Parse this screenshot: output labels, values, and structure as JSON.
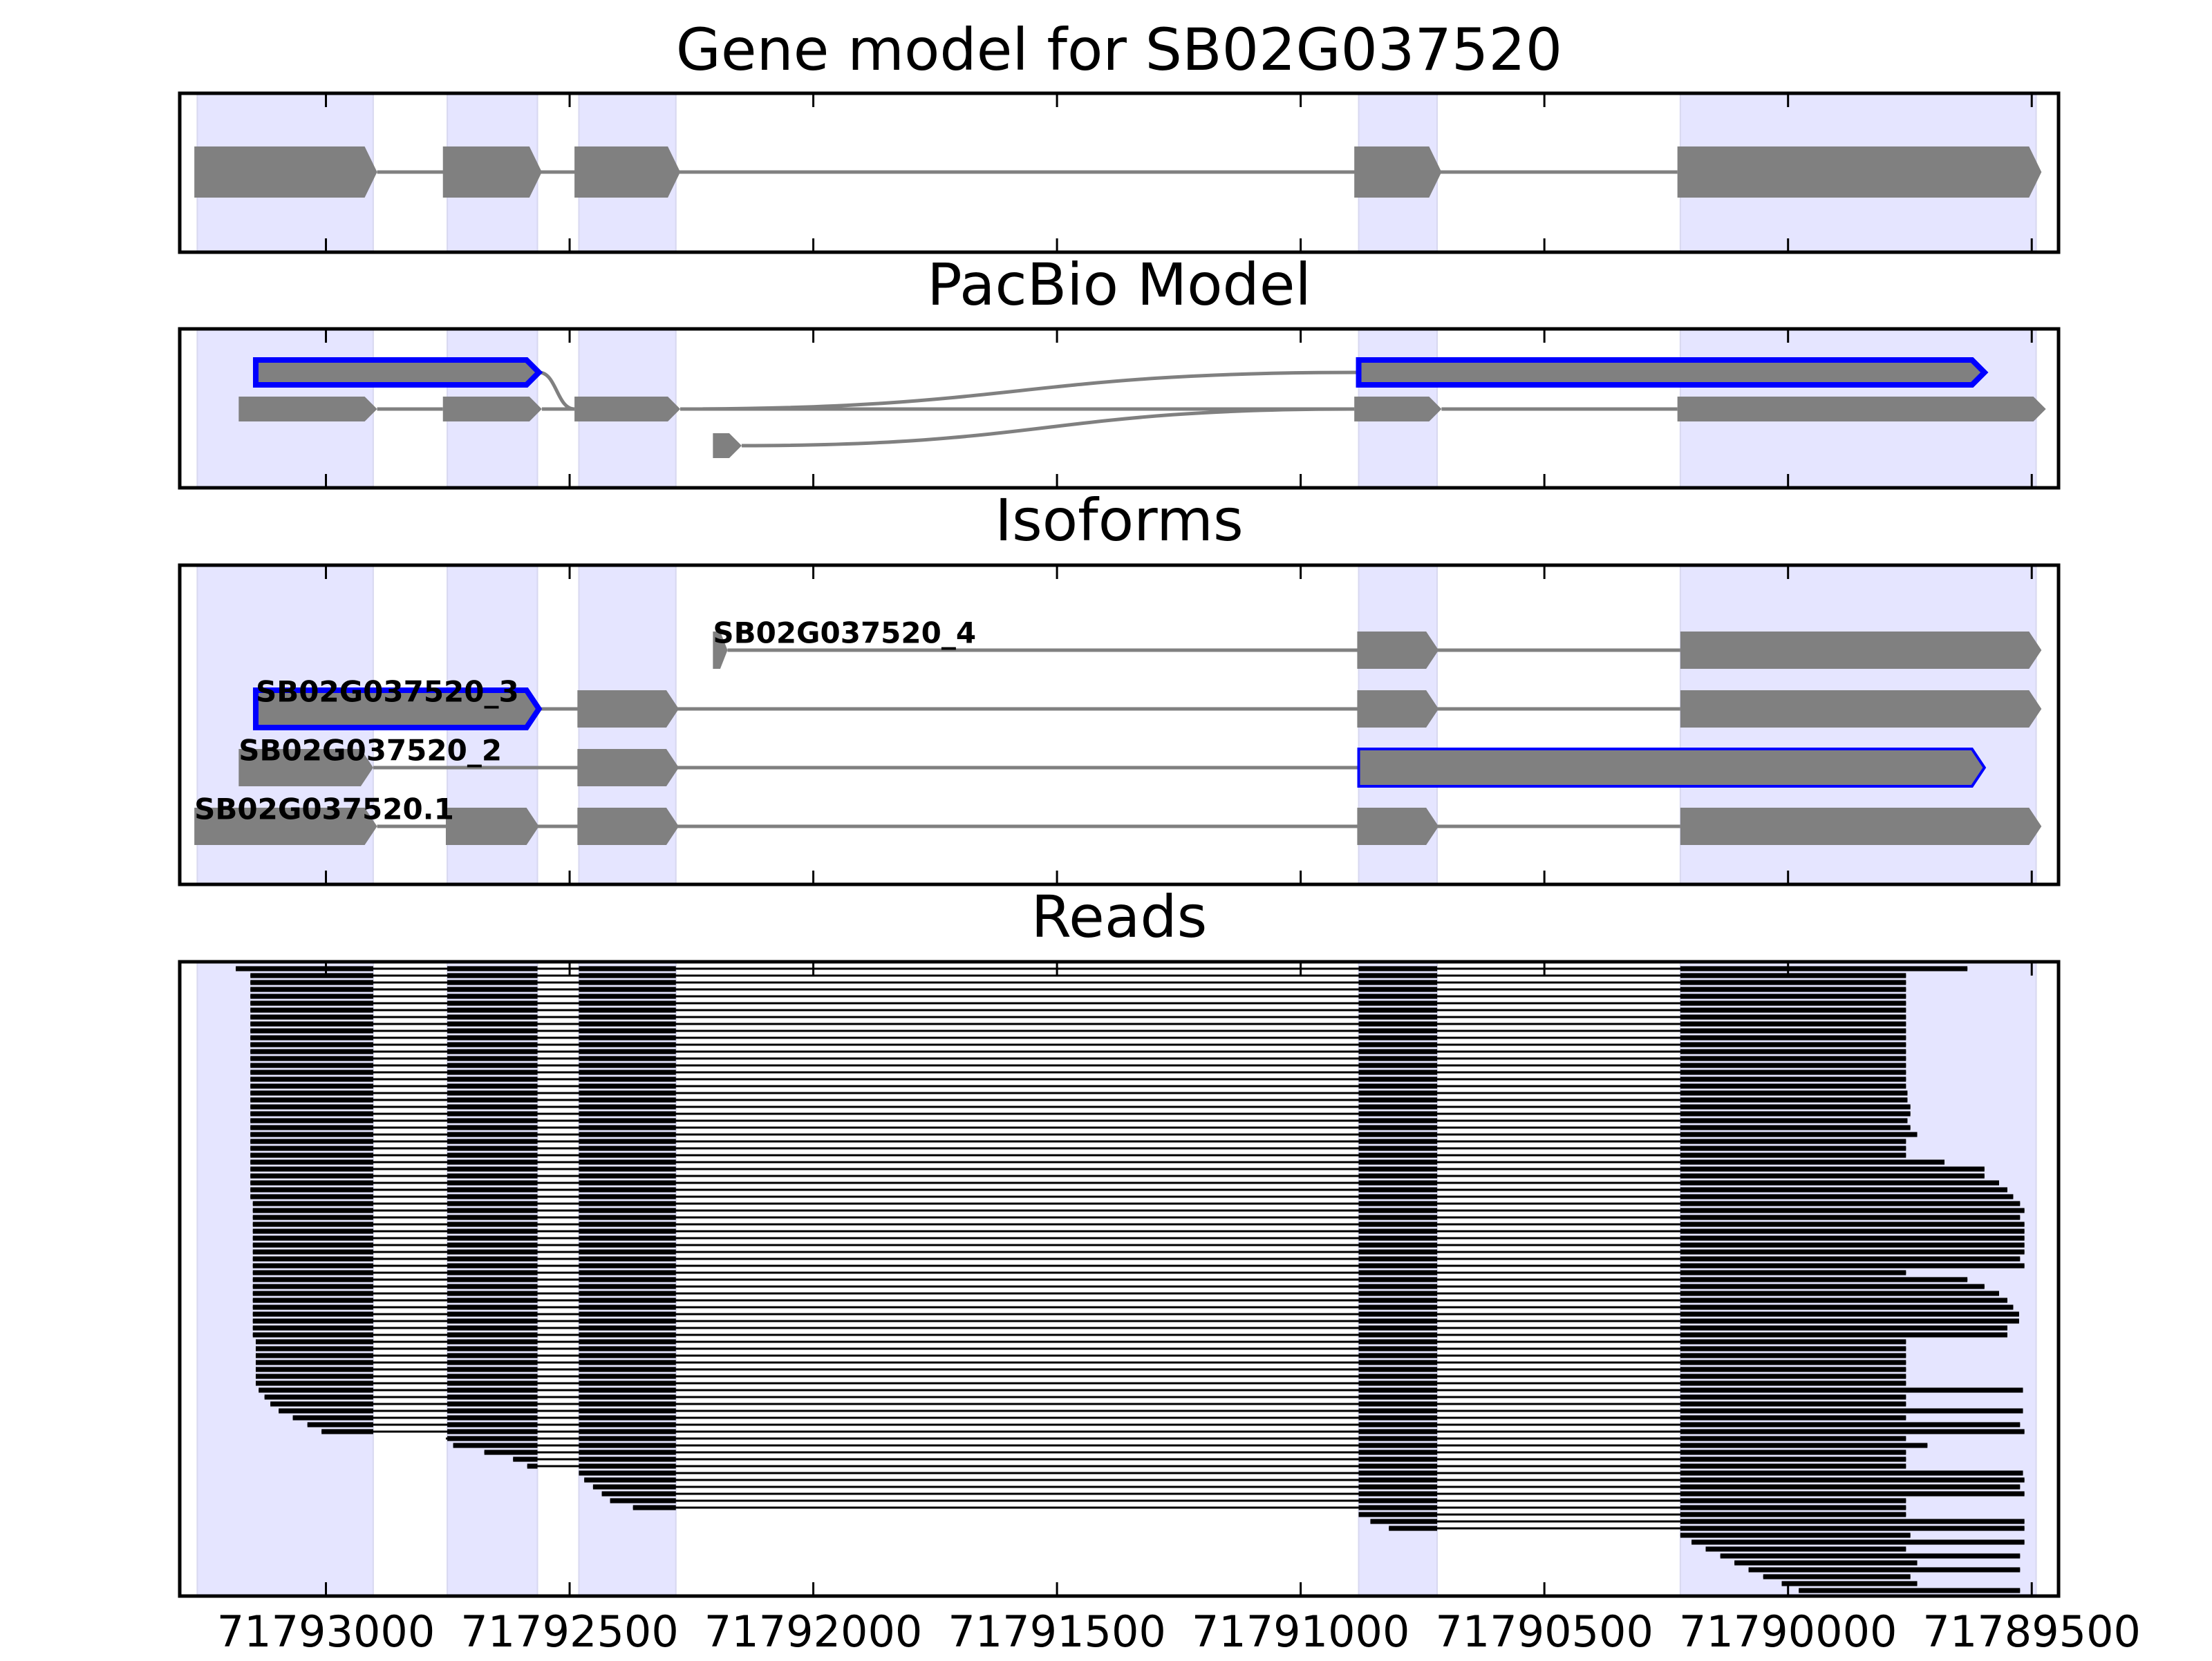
{
  "chart_data": {
    "type": "gene-model",
    "xlim": [
      71793300,
      71789445
    ],
    "xticks": [
      71793000,
      71792500,
      71792000,
      71791500,
      71791000,
      71790500,
      71790000,
      71789500
    ],
    "band_color": "#e5e5ff",
    "exon_color": "#808080",
    "highlight_color": "#0000ff",
    "read_color": "#000000",
    "exon_bands": [
      [
        71793264,
        71792903
      ],
      [
        71792751,
        71792566
      ],
      [
        71792481,
        71792282
      ],
      [
        71790881,
        71790720
      ],
      [
        71790221,
        71789491
      ]
    ],
    "gene_model": {
      "title": "Gene model for SB02G037520",
      "exons": [
        [
          71793270,
          71792895
        ],
        [
          71792760,
          71792557
        ],
        [
          71792490,
          71792273
        ],
        [
          71790890,
          71790711
        ],
        [
          71790227,
          71789480
        ]
      ]
    },
    "pacbio": {
      "title": "PacBio Model",
      "exons": [
        [
          71793144,
          71792563
        ],
        [
          71790881,
          71789597
        ],
        [
          71793179,
          71792895
        ],
        [
          71792760,
          71792557
        ],
        [
          71792490,
          71792273
        ],
        [
          71790890,
          71790711
        ],
        [
          71790227,
          71789471
        ],
        [
          71792206,
          71792147
        ]
      ],
      "rows": [
        0,
        0,
        1,
        1,
        1,
        1,
        1,
        2
      ],
      "outlined": [
        true,
        true,
        false,
        false,
        false,
        false,
        false,
        false
      ],
      "edges": [
        [
          2,
          3
        ],
        [
          3,
          4
        ],
        [
          0,
          4
        ],
        [
          4,
          1
        ],
        [
          4,
          5
        ],
        [
          7,
          5
        ],
        [
          5,
          6
        ]
      ]
    },
    "isoforms": {
      "title": "Isoforms",
      "items": [
        {
          "name": "SB02G037520_4",
          "exons": [
            [
              71792206,
              71792176
            ],
            [
              71790884,
              71790717
            ],
            [
              71790221,
              71789480
            ]
          ],
          "outlined": [
            false,
            false,
            false
          ]
        },
        {
          "name": "SB02G037520_3",
          "exons": [
            [
              71793144,
              71792563
            ],
            [
              71792484,
              71792276
            ],
            [
              71790884,
              71790717
            ],
            [
              71790221,
              71789480
            ]
          ],
          "outlined": [
            true,
            false,
            false,
            false
          ]
        },
        {
          "name": "SB02G037520_2",
          "exons": [
            [
              71793179,
              71792903
            ],
            [
              71792484,
              71792276
            ],
            [
              71790881,
              71789597
            ]
          ],
          "outlined": [
            false,
            false,
            true
          ]
        },
        {
          "name": "SB02G037520.1",
          "exons": [
            [
              71793270,
              71792895
            ],
            [
              71792754,
              71792563
            ],
            [
              71792484,
              71792276
            ],
            [
              71790884,
              71790717
            ],
            [
              71790221,
              71789480
            ]
          ],
          "outlined": [
            false,
            false,
            false,
            false,
            false
          ]
        }
      ]
    },
    "reads": {
      "title": "Reads",
      "values": [
        [
          71793185,
          71789632
        ],
        [
          71793155,
          71789758
        ],
        [
          71793155,
          71789758
        ],
        [
          71793155,
          71789758
        ],
        [
          71793155,
          71789758
        ],
        [
          71793155,
          71789758
        ],
        [
          71793155,
          71789758
        ],
        [
          71793155,
          71789758
        ],
        [
          71793155,
          71789758
        ],
        [
          71793155,
          71789758
        ],
        [
          71793155,
          71789758
        ],
        [
          71793155,
          71789758
        ],
        [
          71793155,
          71789758
        ],
        [
          71793155,
          71789758
        ],
        [
          71793155,
          71789758
        ],
        [
          71793155,
          71789758
        ],
        [
          71793155,
          71789758
        ],
        [
          71793155,
          71789758
        ],
        [
          71793155,
          71789755
        ],
        [
          71793155,
          71789755
        ],
        [
          71793155,
          71789749
        ],
        [
          71793155,
          71789749
        ],
        [
          71793155,
          71789755
        ],
        [
          71793155,
          71789749
        ],
        [
          71793155,
          71789735
        ],
        [
          71793155,
          71789758
        ],
        [
          71793155,
          71789758
        ],
        [
          71793155,
          71789758
        ],
        [
          71793155,
          71789679
        ],
        [
          71793155,
          71789597
        ],
        [
          71793155,
          71789597
        ],
        [
          71793155,
          71789567
        ],
        [
          71793155,
          71789550
        ],
        [
          71793155,
          71789538
        ],
        [
          71793150,
          71789524
        ],
        [
          71793150,
          71789515
        ],
        [
          71793150,
          71789524
        ],
        [
          71793150,
          71789515
        ],
        [
          71793150,
          71789515
        ],
        [
          71793150,
          71789515
        ],
        [
          71793150,
          71789515
        ],
        [
          71793150,
          71789515
        ],
        [
          71793150,
          71789524
        ],
        [
          71793150,
          71789515
        ],
        [
          71793150,
          71789758
        ],
        [
          71793150,
          71789632
        ],
        [
          71793150,
          71789597
        ],
        [
          71793150,
          71789567
        ],
        [
          71793150,
          71789550
        ],
        [
          71793150,
          71789538
        ],
        [
          71793150,
          71789526
        ],
        [
          71793150,
          71789526
        ],
        [
          71793150,
          71789550
        ],
        [
          71793150,
          71789550
        ],
        [
          71793144,
          71789758
        ],
        [
          71793144,
          71789758
        ],
        [
          71793144,
          71789758
        ],
        [
          71793144,
          71789758
        ],
        [
          71793144,
          71789758
        ],
        [
          71793144,
          71789758
        ],
        [
          71793144,
          71789758
        ],
        [
          71793138,
          71789518
        ],
        [
          71793126,
          71789758
        ],
        [
          71793114,
          71789758
        ],
        [
          71793097,
          71789518
        ],
        [
          71793068,
          71789758
        ],
        [
          71793038,
          71789524
        ],
        [
          71793009,
          71789515
        ],
        [
          71792754,
          71789758
        ],
        [
          71792739,
          71789714
        ],
        [
          71792675,
          71789758
        ],
        [
          71792616,
          71789758
        ],
        [
          71792587,
          71789758
        ],
        [
          71792481,
          71789518
        ],
        [
          71792470,
          71789515
        ],
        [
          71792452,
          71789524
        ],
        [
          71792434,
          71789515
        ],
        [
          71792417,
          71789758
        ],
        [
          71792370,
          71789758
        ],
        [
          71790881,
          71789758
        ],
        [
          71790857,
          71789515
        ],
        [
          71790819,
          71789515
        ],
        [
          71790221,
          71789749
        ],
        [
          71790198,
          71789515
        ],
        [
          71790169,
          71789758
        ],
        [
          71790139,
          71789524
        ],
        [
          71790110,
          71789735
        ],
        [
          71790081,
          71789524
        ],
        [
          71790051,
          71789749
        ],
        [
          71790013,
          71789735
        ],
        [
          71789978,
          71789524
        ]
      ]
    }
  }
}
